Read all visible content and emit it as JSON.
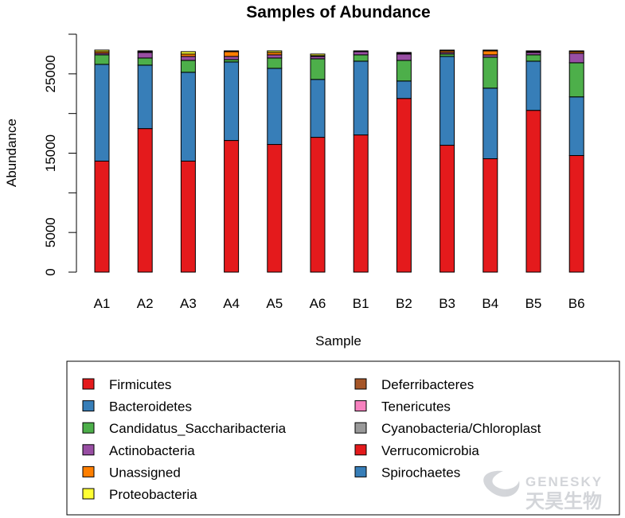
{
  "chart_data": {
    "type": "bar",
    "stacked": true,
    "title": "Samples of Abundance",
    "xlabel": "Sample",
    "ylabel": "Abundance",
    "ylim": [
      0,
      30000
    ],
    "yticks": [
      0,
      5000,
      15000,
      25000
    ],
    "categories": [
      "A1",
      "A2",
      "A3",
      "A4",
      "A5",
      "A6",
      "B1",
      "B2",
      "B3",
      "B4",
      "B5",
      "B6"
    ],
    "series": [
      {
        "name": "Firmicutes",
        "color": "#e41a1c",
        "values": [
          14000,
          18100,
          14000,
          16600,
          16100,
          17000,
          17300,
          21900,
          16000,
          14300,
          20400,
          14700
        ]
      },
      {
        "name": "Bacteroidetes",
        "color": "#377eb8",
        "values": [
          12200,
          8000,
          11200,
          9900,
          9600,
          7300,
          9300,
          2200,
          11200,
          8900,
          6200,
          7400
        ]
      },
      {
        "name": "Candidatus_Saccharibacteria",
        "color": "#4daf4a",
        "values": [
          1200,
          900,
          1500,
          300,
          1300,
          2600,
          800,
          2600,
          300,
          3900,
          800,
          4300
        ]
      },
      {
        "name": "Actinobacteria",
        "color": "#984ea3",
        "values": [
          200,
          700,
          500,
          400,
          400,
          300,
          400,
          800,
          200,
          300,
          300,
          1200
        ]
      },
      {
        "name": "Unassigned",
        "color": "#ff7f00",
        "values": [
          200,
          100,
          300,
          600,
          300,
          100,
          100,
          100,
          200,
          500,
          100,
          200
        ]
      },
      {
        "name": "Proteobacteria",
        "color": "#ffff33",
        "values": [
          200,
          100,
          300,
          100,
          200,
          200,
          0,
          100,
          100,
          100,
          100,
          100
        ]
      },
      {
        "name": "Deferribacteres",
        "color": "#a65628",
        "values": [
          0,
          0,
          0,
          0,
          0,
          0,
          0,
          0,
          0,
          0,
          0,
          0
        ]
      },
      {
        "name": "Tenericutes",
        "color": "#f781bf",
        "values": [
          0,
          0,
          0,
          0,
          0,
          0,
          0,
          0,
          0,
          0,
          0,
          0
        ]
      },
      {
        "name": "Cyanobacteria/Chloroplast",
        "color": "#999999",
        "values": [
          0,
          0,
          0,
          0,
          0,
          0,
          0,
          0,
          0,
          0,
          0,
          0
        ]
      },
      {
        "name": "Verrucomicrobia",
        "color": "#e41a1c",
        "values": [
          0,
          0,
          0,
          0,
          0,
          0,
          0,
          0,
          0,
          0,
          0,
          0
        ]
      },
      {
        "name": "Spirochaetes",
        "color": "#377eb8",
        "values": [
          0,
          0,
          0,
          0,
          0,
          0,
          0,
          0,
          0,
          0,
          0,
          0
        ]
      }
    ],
    "legend_position": "bottom",
    "grid": false
  },
  "watermark": {
    "latin": "GENESKY",
    "chinese": "天昊生物"
  }
}
